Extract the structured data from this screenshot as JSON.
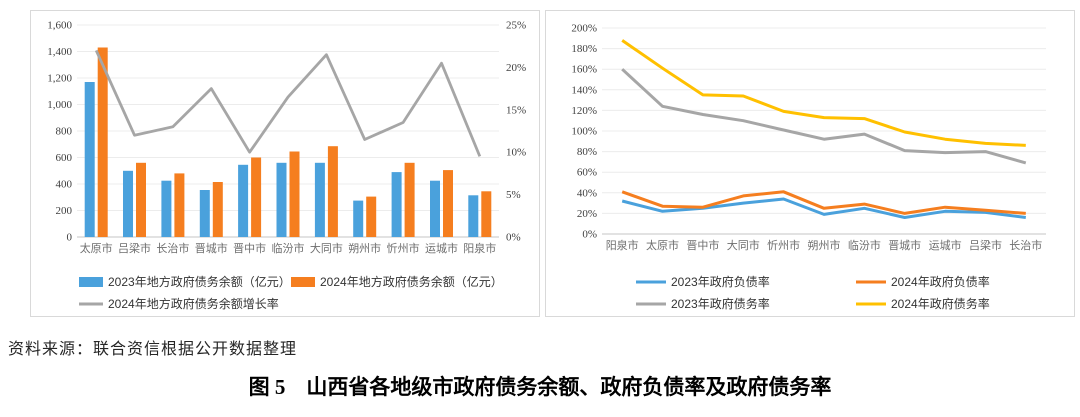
{
  "figure": {
    "source_note": "资料来源：联合资信根据公开数据整理",
    "caption": "图 5　山西省各地级市政府债务余额、政府负债率及政府债务率"
  },
  "colors": {
    "blue": "#4AA1DC",
    "orange": "#F57E1F",
    "gray": "#A6A6A6",
    "yellow": "#FFC000",
    "grid": "#ECECEC",
    "axis": "#C6C6C6",
    "tick_text": "#404040",
    "category_text": "#6E6E6E",
    "legend_text": "#333333",
    "panel_border": "#D9D9D9"
  },
  "chart_data": [
    {
      "id": "debt-balance-chart",
      "type": "bar",
      "title": "",
      "grid": true,
      "legend_position": "bottom",
      "categories": [
        "太原市",
        "吕梁市",
        "长治市",
        "晋城市",
        "晋中市",
        "临汾市",
        "大同市",
        "朔州市",
        "忻州市",
        "运城市",
        "阳泉市"
      ],
      "series": [
        {
          "name": "2023年地方政府债务余额（亿元）",
          "kind": "bar",
          "color": "blue",
          "axis": "left",
          "values": [
            1170,
            500,
            425,
            355,
            545,
            560,
            560,
            275,
            490,
            425,
            315
          ]
        },
        {
          "name": "2024年地方政府债务余额（亿元）",
          "kind": "bar",
          "color": "orange",
          "axis": "left",
          "values": [
            1430,
            560,
            480,
            415,
            600,
            645,
            685,
            305,
            560,
            505,
            345
          ]
        },
        {
          "name": "2024年地方政府债务余额增长率",
          "kind": "line",
          "color": "gray",
          "axis": "right",
          "values": [
            22,
            12,
            13,
            17.5,
            10,
            16.5,
            21.5,
            11.5,
            13.5,
            20.5,
            9.5
          ]
        }
      ],
      "left_axis": {
        "min": 0,
        "max": 1600,
        "step": 200,
        "ticks": [
          "0",
          "200",
          "400",
          "600",
          "800",
          "1,000",
          "1,200",
          "1,400",
          "1,600"
        ]
      },
      "right_axis": {
        "min": 0,
        "max": 25,
        "step": 5,
        "ticks": [
          "0%",
          "5%",
          "10%",
          "15%",
          "20%",
          "25%"
        ]
      }
    },
    {
      "id": "debt-ratio-chart",
      "type": "line",
      "title": "",
      "grid": true,
      "legend_position": "bottom",
      "categories": [
        "阳泉市",
        "太原市",
        "晋中市",
        "大同市",
        "忻州市",
        "朔州市",
        "临汾市",
        "晋城市",
        "运城市",
        "吕梁市",
        "长治市"
      ],
      "series": [
        {
          "name": "2023年政府负债率",
          "kind": "line",
          "color": "blue",
          "values": [
            32,
            22,
            25,
            30,
            34,
            19,
            25,
            16,
            22,
            21,
            16
          ]
        },
        {
          "name": "2024年政府负债率",
          "kind": "line",
          "color": "orange",
          "values": [
            41,
            27,
            26,
            37,
            41,
            25,
            29,
            20,
            26,
            23,
            20
          ]
        },
        {
          "name": "2023年政府债务率",
          "kind": "line",
          "color": "gray",
          "values": [
            160,
            124,
            116,
            110,
            101,
            92,
            97,
            81,
            79,
            80,
            69
          ]
        },
        {
          "name": "2024年政府债务率",
          "kind": "line",
          "color": "yellow",
          "values": [
            188,
            161,
            135,
            134,
            119,
            113,
            112,
            99,
            92,
            88,
            86
          ]
        }
      ],
      "y_axis": {
        "min": 0,
        "max": 200,
        "step": 20,
        "ticks": [
          "0%",
          "20%",
          "40%",
          "60%",
          "80%",
          "100%",
          "120%",
          "140%",
          "160%",
          "180%",
          "200%"
        ]
      }
    }
  ]
}
